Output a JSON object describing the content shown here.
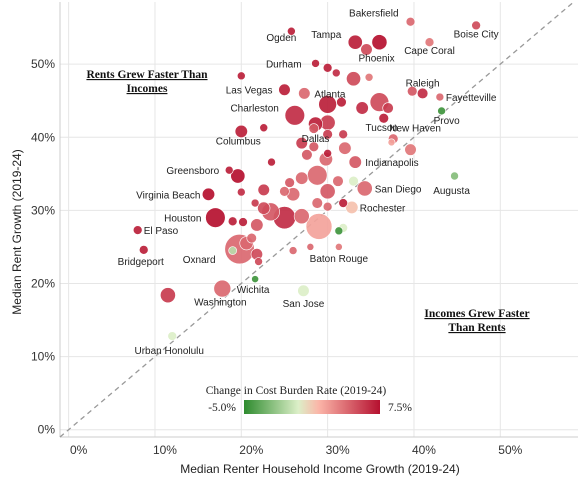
{
  "chart_data": {
    "type": "scatter",
    "title": "",
    "xlabel": "Median Renter Household Income Growth (2019-24)",
    "ylabel": "Median Rent Growth (2019-24)",
    "xlim": [
      -0.01,
      0.59
    ],
    "ylim": [
      -0.01,
      0.585
    ],
    "x_ticks": [
      0,
      0.1,
      0.2,
      0.3,
      0.4,
      0.5
    ],
    "x_tick_labels": [
      "0%",
      "10%",
      "20%",
      "30%",
      "40%",
      "50%"
    ],
    "y_ticks": [
      0,
      0.1,
      0.2,
      0.3,
      0.4,
      0.5
    ],
    "y_tick_labels": [
      "0%",
      "10%",
      "20%",
      "30%",
      "40%",
      "50%"
    ],
    "grid": true,
    "reference_line": "y = x (dashed)",
    "annotations": [
      {
        "text_lines": [
          "Rents Grew Faster Than",
          "Incomes"
        ],
        "region": "upper-left"
      },
      {
        "text_lines": [
          "Incomes Grew Faster",
          "Than Rents"
        ],
        "region": "lower-right"
      }
    ],
    "color_scale": {
      "title": "Change in Cost Burden Rate (2019-24)",
      "min_label": "-5.0%",
      "max_label": "7.5%",
      "min": -0.05,
      "max": 0.075,
      "colors": [
        "#2e8b2e",
        "#dcefc8",
        "#fbb5a8",
        "#b5102f"
      ]
    },
    "points": [
      {
        "label": "Bakersfield",
        "x": 0.396,
        "y": 0.558,
        "c": 0.045,
        "s": 0.25
      },
      {
        "label": "Ogden",
        "x": 0.258,
        "y": 0.545,
        "c": 0.07,
        "s": 0.2
      },
      {
        "label": "Tampa",
        "x": 0.332,
        "y": 0.53,
        "c": 0.07,
        "s": 0.55
      },
      {
        "label": "",
        "x": 0.36,
        "y": 0.53,
        "c": 0.075,
        "s": 0.6
      },
      {
        "label": "Boise City",
        "x": 0.472,
        "y": 0.553,
        "c": 0.055,
        "s": 0.25
      },
      {
        "label": "Cape Coral",
        "x": 0.418,
        "y": 0.53,
        "c": 0.04,
        "s": 0.25
      },
      {
        "label": "Phoenix",
        "x": 0.345,
        "y": 0.52,
        "c": 0.055,
        "s": 0.4
      },
      {
        "label": "Durham",
        "x": 0.286,
        "y": 0.501,
        "c": 0.07,
        "s": 0.2
      },
      {
        "label": "",
        "x": 0.3,
        "y": 0.495,
        "c": 0.07,
        "s": 0.25
      },
      {
        "label": "",
        "x": 0.31,
        "y": 0.488,
        "c": 0.065,
        "s": 0.2
      },
      {
        "label": "",
        "x": 0.33,
        "y": 0.48,
        "c": 0.055,
        "s": 0.55
      },
      {
        "label": "",
        "x": 0.348,
        "y": 0.482,
        "c": 0.04,
        "s": 0.2
      },
      {
        "label": "",
        "x": 0.2,
        "y": 0.484,
        "c": 0.07,
        "s": 0.2
      },
      {
        "label": "Las Vegas",
        "x": 0.25,
        "y": 0.465,
        "c": 0.07,
        "s": 0.4
      },
      {
        "label": "Atlanta",
        "x": 0.273,
        "y": 0.46,
        "c": 0.045,
        "s": 0.4
      },
      {
        "label": "Raleigh",
        "x": 0.41,
        "y": 0.46,
        "c": 0.065,
        "s": 0.35
      },
      {
        "label": "",
        "x": 0.398,
        "y": 0.463,
        "c": 0.05,
        "s": 0.3
      },
      {
        "label": "Fayetteville",
        "x": 0.43,
        "y": 0.455,
        "c": 0.045,
        "s": 0.2
      },
      {
        "label": "",
        "x": 0.3,
        "y": 0.445,
        "c": 0.07,
        "s": 0.75
      },
      {
        "label": "",
        "x": 0.316,
        "y": 0.448,
        "c": 0.07,
        "s": 0.3
      },
      {
        "label": "",
        "x": 0.36,
        "y": 0.448,
        "c": 0.055,
        "s": 0.8
      },
      {
        "label": "",
        "x": 0.34,
        "y": 0.44,
        "c": 0.065,
        "s": 0.45
      },
      {
        "label": "",
        "x": 0.37,
        "y": 0.44,
        "c": 0.06,
        "s": 0.35
      },
      {
        "label": "Provo",
        "x": 0.432,
        "y": 0.436,
        "c": -0.045,
        "s": 0.2
      },
      {
        "label": "Charleston",
        "x": 0.262,
        "y": 0.43,
        "c": 0.065,
        "s": 0.85
      },
      {
        "label": "",
        "x": 0.284,
        "y": 0.412,
        "c": 0.05,
        "s": 0.3
      },
      {
        "label": "Tucson",
        "x": 0.365,
        "y": 0.426,
        "c": 0.07,
        "s": 0.3
      },
      {
        "label": "",
        "x": 0.226,
        "y": 0.413,
        "c": 0.07,
        "s": 0.2
      },
      {
        "label": "Columbus",
        "x": 0.2,
        "y": 0.408,
        "c": 0.07,
        "s": 0.45
      },
      {
        "label": "Dallas",
        "x": 0.286,
        "y": 0.418,
        "c": 0.07,
        "s": 0.55
      },
      {
        "label": "",
        "x": 0.3,
        "y": 0.42,
        "c": 0.06,
        "s": 0.6
      },
      {
        "label": "",
        "x": 0.3,
        "y": 0.404,
        "c": 0.06,
        "s": 0.3
      },
      {
        "label": "",
        "x": 0.318,
        "y": 0.404,
        "c": 0.06,
        "s": 0.25
      },
      {
        "label": "New Haven",
        "x": 0.376,
        "y": 0.398,
        "c": 0.045,
        "s": 0.3
      },
      {
        "label": "",
        "x": 0.396,
        "y": 0.383,
        "c": 0.04,
        "s": 0.4
      },
      {
        "label": "",
        "x": 0.374,
        "y": 0.393,
        "c": 0.025,
        "s": 0.15
      },
      {
        "label": "",
        "x": 0.27,
        "y": 0.392,
        "c": 0.06,
        "s": 0.4
      },
      {
        "label": "",
        "x": 0.284,
        "y": 0.387,
        "c": 0.05,
        "s": 0.3
      },
      {
        "label": "",
        "x": 0.32,
        "y": 0.385,
        "c": 0.045,
        "s": 0.45
      },
      {
        "label": "",
        "x": 0.3,
        "y": 0.378,
        "c": 0.07,
        "s": 0.2
      },
      {
        "label": "",
        "x": 0.276,
        "y": 0.376,
        "c": 0.05,
        "s": 0.35
      },
      {
        "label": "",
        "x": 0.298,
        "y": 0.37,
        "c": 0.045,
        "s": 0.5
      },
      {
        "label": "Indianapolis",
        "x": 0.332,
        "y": 0.366,
        "c": 0.05,
        "s": 0.45
      },
      {
        "label": "",
        "x": 0.235,
        "y": 0.366,
        "c": 0.07,
        "s": 0.2
      },
      {
        "label": "Greensboro",
        "x": 0.186,
        "y": 0.355,
        "c": 0.07,
        "s": 0.2
      },
      {
        "label": "",
        "x": 0.196,
        "y": 0.347,
        "c": 0.075,
        "s": 0.55
      },
      {
        "label": "",
        "x": 0.288,
        "y": 0.348,
        "c": 0.045,
        "s": 0.85
      },
      {
        "label": "",
        "x": 0.27,
        "y": 0.344,
        "c": 0.045,
        "s": 0.45
      },
      {
        "label": "",
        "x": 0.256,
        "y": 0.338,
        "c": 0.05,
        "s": 0.3
      },
      {
        "label": "",
        "x": 0.312,
        "y": 0.34,
        "c": 0.045,
        "s": 0.35
      },
      {
        "label": "",
        "x": 0.33,
        "y": 0.34,
        "c": 0.0,
        "s": 0.3
      },
      {
        "label": "Augusta",
        "x": 0.447,
        "y": 0.347,
        "c": -0.025,
        "s": 0.2
      },
      {
        "label": "San Diego",
        "x": 0.343,
        "y": 0.33,
        "c": 0.045,
        "s": 0.6
      },
      {
        "label": "",
        "x": 0.226,
        "y": 0.328,
        "c": 0.06,
        "s": 0.4
      },
      {
        "label": "",
        "x": 0.25,
        "y": 0.326,
        "c": 0.045,
        "s": 0.3
      },
      {
        "label": "",
        "x": 0.26,
        "y": 0.322,
        "c": 0.045,
        "s": 0.5
      },
      {
        "label": "",
        "x": 0.3,
        "y": 0.326,
        "c": 0.05,
        "s": 0.6
      },
      {
        "label": "",
        "x": 0.2,
        "y": 0.325,
        "c": 0.065,
        "s": 0.2
      },
      {
        "label": "Virginia Beach",
        "x": 0.162,
        "y": 0.322,
        "c": 0.075,
        "s": 0.45
      },
      {
        "label": "",
        "x": 0.216,
        "y": 0.31,
        "c": 0.06,
        "s": 0.2
      },
      {
        "label": "",
        "x": 0.318,
        "y": 0.31,
        "c": 0.07,
        "s": 0.25
      },
      {
        "label": "",
        "x": 0.288,
        "y": 0.31,
        "c": 0.045,
        "s": 0.35
      },
      {
        "label": "Rochester",
        "x": 0.328,
        "y": 0.304,
        "c": 0.015,
        "s": 0.45
      },
      {
        "label": "",
        "x": 0.3,
        "y": 0.305,
        "c": 0.045,
        "s": 0.25
      },
      {
        "label": "",
        "x": 0.226,
        "y": 0.303,
        "c": 0.055,
        "s": 0.45
      },
      {
        "label": "",
        "x": 0.234,
        "y": 0.298,
        "c": 0.05,
        "s": 0.75
      },
      {
        "label": "Houston",
        "x": 0.17,
        "y": 0.29,
        "c": 0.075,
        "s": 0.85
      },
      {
        "label": "",
        "x": 0.25,
        "y": 0.29,
        "c": 0.065,
        "s": 1.0
      },
      {
        "label": "",
        "x": 0.27,
        "y": 0.292,
        "c": 0.045,
        "s": 0.6
      },
      {
        "label": "",
        "x": 0.19,
        "y": 0.285,
        "c": 0.07,
        "s": 0.25
      },
      {
        "label": "",
        "x": 0.202,
        "y": 0.284,
        "c": 0.07,
        "s": 0.25
      },
      {
        "label": "",
        "x": 0.218,
        "y": 0.28,
        "c": 0.05,
        "s": 0.45
      },
      {
        "label": "",
        "x": 0.29,
        "y": 0.278,
        "c": 0.025,
        "s": 1.2
      },
      {
        "label": "",
        "x": 0.318,
        "y": 0.276,
        "c": 0.0,
        "s": 0.25
      },
      {
        "label": "",
        "x": 0.313,
        "y": 0.272,
        "c": -0.045,
        "s": 0.2
      },
      {
        "label": "El Paso",
        "x": 0.08,
        "y": 0.273,
        "c": 0.07,
        "s": 0.25
      },
      {
        "label": "",
        "x": 0.212,
        "y": 0.262,
        "c": 0.045,
        "s": 0.3
      },
      {
        "label": "",
        "x": 0.206,
        "y": 0.255,
        "c": 0.045,
        "s": 0.5
      },
      {
        "label": "Oxnard",
        "x": 0.198,
        "y": 0.247,
        "c": 0.045,
        "s": 1.4
      },
      {
        "label": "",
        "x": 0.19,
        "y": 0.245,
        "c": -0.01,
        "s": 0.2
      },
      {
        "label": "",
        "x": 0.218,
        "y": 0.24,
        "c": 0.055,
        "s": 0.4
      },
      {
        "label": "Bridgeport",
        "x": 0.087,
        "y": 0.246,
        "c": 0.07,
        "s": 0.25
      },
      {
        "label": "",
        "x": 0.28,
        "y": 0.25,
        "c": 0.045,
        "s": 0.15
      },
      {
        "label": "Baton Rouge",
        "x": 0.313,
        "y": 0.25,
        "c": 0.04,
        "s": 0.15
      },
      {
        "label": "",
        "x": 0.26,
        "y": 0.245,
        "c": 0.045,
        "s": 0.2
      },
      {
        "label": "",
        "x": 0.22,
        "y": 0.23,
        "c": 0.055,
        "s": 0.2
      },
      {
        "label": "Wichita",
        "x": 0.216,
        "y": 0.206,
        "c": -0.045,
        "s": 0.15
      },
      {
        "label": "Washington",
        "x": 0.178,
        "y": 0.193,
        "c": 0.045,
        "s": 0.7
      },
      {
        "label": "",
        "x": 0.115,
        "y": 0.184,
        "c": 0.06,
        "s": 0.6
      },
      {
        "label": "San Jose",
        "x": 0.272,
        "y": 0.19,
        "c": 0.0,
        "s": 0.4
      },
      {
        "label": "Urban Honolulu",
        "x": 0.12,
        "y": 0.128,
        "c": 0.0,
        "s": 0.25
      }
    ]
  }
}
